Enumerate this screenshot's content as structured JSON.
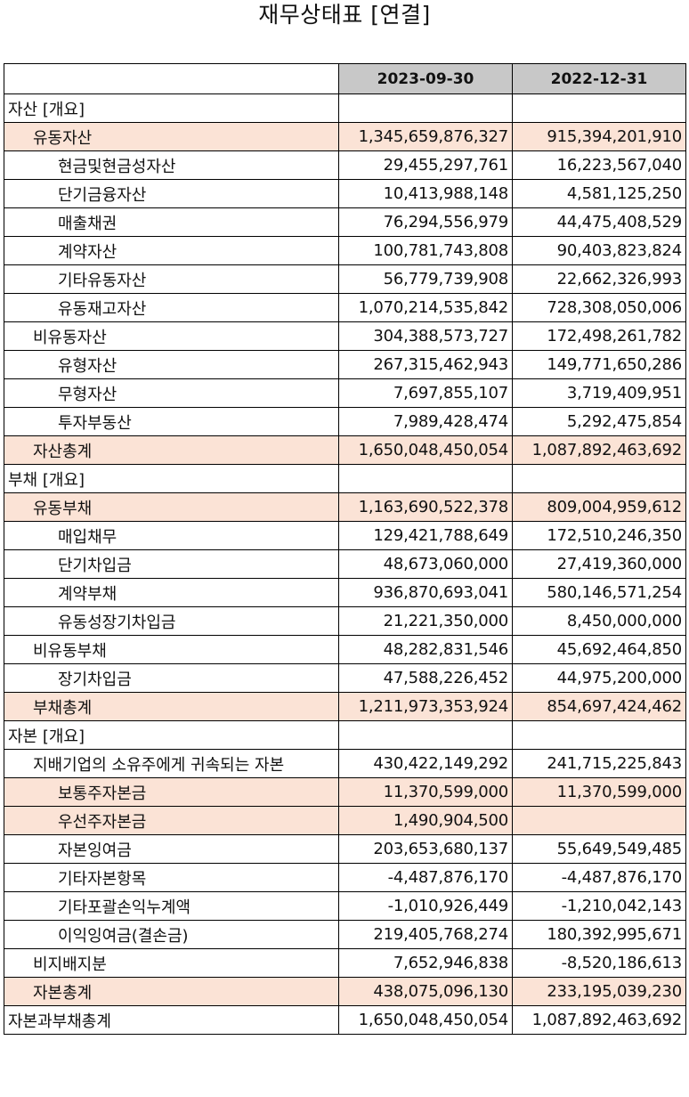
{
  "title": "재무상태표 [연결]",
  "columns": [
    "2023-09-30",
    "2022-12-31"
  ],
  "rows": [
    {
      "label": "자산 [개요]",
      "level": 0,
      "highlight": false,
      "v1": "",
      "v2": ""
    },
    {
      "label": "유동자산",
      "level": 1,
      "highlight": true,
      "v1": "1,345,659,876,327",
      "v2": "915,394,201,910"
    },
    {
      "label": "현금및현금성자산",
      "level": 2,
      "highlight": false,
      "v1": "29,455,297,761",
      "v2": "16,223,567,040"
    },
    {
      "label": "단기금융자산",
      "level": 2,
      "highlight": false,
      "v1": "10,413,988,148",
      "v2": "4,581,125,250"
    },
    {
      "label": "매출채권",
      "level": 2,
      "highlight": false,
      "v1": "76,294,556,979",
      "v2": "44,475,408,529"
    },
    {
      "label": "계약자산",
      "level": 2,
      "highlight": false,
      "v1": "100,781,743,808",
      "v2": "90,403,823,824"
    },
    {
      "label": "기타유동자산",
      "level": 2,
      "highlight": false,
      "v1": "56,779,739,908",
      "v2": "22,662,326,993"
    },
    {
      "label": "유동재고자산",
      "level": 2,
      "highlight": false,
      "v1": "1,070,214,535,842",
      "v2": "728,308,050,006"
    },
    {
      "label": "비유동자산",
      "level": 1,
      "highlight": false,
      "v1": "304,388,573,727",
      "v2": "172,498,261,782"
    },
    {
      "label": "유형자산",
      "level": 2,
      "highlight": false,
      "v1": "267,315,462,943",
      "v2": "149,771,650,286"
    },
    {
      "label": "무형자산",
      "level": 2,
      "highlight": false,
      "v1": "7,697,855,107",
      "v2": "3,719,409,951"
    },
    {
      "label": "투자부동산",
      "level": 2,
      "highlight": false,
      "v1": "7,989,428,474",
      "v2": "5,292,475,854"
    },
    {
      "label": "자산총계",
      "level": 1,
      "highlight": true,
      "v1": "1,650,048,450,054",
      "v2": "1,087,892,463,692"
    },
    {
      "label": "부채 [개요]",
      "level": 0,
      "highlight": false,
      "v1": "",
      "v2": ""
    },
    {
      "label": "유동부채",
      "level": 1,
      "highlight": true,
      "v1": "1,163,690,522,378",
      "v2": "809,004,959,612"
    },
    {
      "label": "매입채무",
      "level": 2,
      "highlight": false,
      "v1": "129,421,788,649",
      "v2": "172,510,246,350"
    },
    {
      "label": "단기차입금",
      "level": 2,
      "highlight": false,
      "v1": "48,673,060,000",
      "v2": "27,419,360,000"
    },
    {
      "label": "계약부채",
      "level": 2,
      "highlight": false,
      "v1": "936,870,693,041",
      "v2": "580,146,571,254"
    },
    {
      "label": "유동성장기차입금",
      "level": 2,
      "highlight": false,
      "v1": "21,221,350,000",
      "v2": "8,450,000,000"
    },
    {
      "label": "비유동부채",
      "level": 1,
      "highlight": false,
      "v1": "48,282,831,546",
      "v2": "45,692,464,850"
    },
    {
      "label": "장기차입금",
      "level": 2,
      "highlight": false,
      "v1": "47,588,226,452",
      "v2": "44,975,200,000"
    },
    {
      "label": "부채총계",
      "level": 1,
      "highlight": true,
      "v1": "1,211,973,353,924",
      "v2": "854,697,424,462"
    },
    {
      "label": "자본 [개요]",
      "level": 0,
      "highlight": false,
      "v1": "",
      "v2": ""
    },
    {
      "label": "지배기업의 소유주에게 귀속되는 자본",
      "level": 1,
      "highlight": false,
      "v1": "430,422,149,292",
      "v2": "241,715,225,843"
    },
    {
      "label": "보통주자본금",
      "level": 2,
      "highlight": true,
      "v1": "11,370,599,000",
      "v2": "11,370,599,000"
    },
    {
      "label": "우선주자본금",
      "level": 2,
      "highlight": true,
      "v1": "1,490,904,500",
      "v2": ""
    },
    {
      "label": "자본잉여금",
      "level": 2,
      "highlight": false,
      "v1": "203,653,680,137",
      "v2": "55,649,549,485"
    },
    {
      "label": "기타자본항목",
      "level": 2,
      "highlight": false,
      "v1": "-4,487,876,170",
      "v2": "-4,487,876,170"
    },
    {
      "label": "기타포괄손익누계액",
      "level": 2,
      "highlight": false,
      "v1": "-1,010,926,449",
      "v2": "-1,210,042,143"
    },
    {
      "label": "이익잉여금(결손금)",
      "level": 2,
      "highlight": false,
      "v1": "219,405,768,274",
      "v2": "180,392,995,671"
    },
    {
      "label": "비지배지분",
      "level": 1,
      "highlight": false,
      "v1": "7,652,946,838",
      "v2": "-8,520,186,613"
    },
    {
      "label": "자본총계",
      "level": 1,
      "highlight": true,
      "v1": "438,075,096,130",
      "v2": "233,195,039,230"
    },
    {
      "label": "자본과부채총계",
      "level": 0,
      "highlight": false,
      "v1": "1,650,048,450,054",
      "v2": "1,087,892,463,692"
    }
  ]
}
